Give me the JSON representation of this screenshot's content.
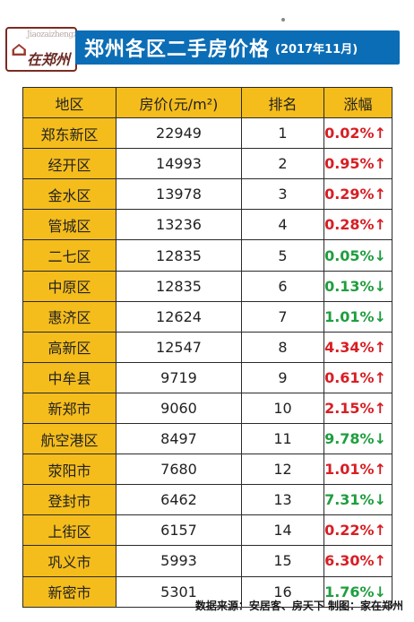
{
  "header": {
    "logo_text": "在郑州",
    "logo_sub": "Jiaozaizhengzhou",
    "title": "郑州各区二手房价格",
    "subtitle": "(2017年11月)"
  },
  "table": {
    "headers": [
      "地区",
      "房价(元/m²)",
      "排名",
      "涨幅"
    ],
    "rows": [
      {
        "district": "郑东新区",
        "price": "22949",
        "rank": "1",
        "change": "0.02%↑",
        "dir": "up"
      },
      {
        "district": "经开区",
        "price": "14993",
        "rank": "2",
        "change": "0.95%↑",
        "dir": "up"
      },
      {
        "district": "金水区",
        "price": "13978",
        "rank": "3",
        "change": "0.29%↑",
        "dir": "up"
      },
      {
        "district": "管城区",
        "price": "13236",
        "rank": "4",
        "change": "0.28%↑",
        "dir": "up"
      },
      {
        "district": "二七区",
        "price": "12835",
        "rank": "5",
        "change": "0.05%↓",
        "dir": "down"
      },
      {
        "district": "中原区",
        "price": "12835",
        "rank": "6",
        "change": "0.13%↓",
        "dir": "down"
      },
      {
        "district": "惠济区",
        "price": "12624",
        "rank": "7",
        "change": "1.01%↓",
        "dir": "down"
      },
      {
        "district": "高新区",
        "price": "12547",
        "rank": "8",
        "change": "4.34%↑",
        "dir": "up"
      },
      {
        "district": "中牟县",
        "price": "9719",
        "rank": "9",
        "change": "0.61%↑",
        "dir": "up"
      },
      {
        "district": "新郑市",
        "price": "9060",
        "rank": "10",
        "change": "2.15%↑",
        "dir": "up"
      },
      {
        "district": "航空港区",
        "price": "8497",
        "rank": "11",
        "change": "9.78%↓",
        "dir": "down"
      },
      {
        "district": "荥阳市",
        "price": "7680",
        "rank": "12",
        "change": "1.01%↑",
        "dir": "up"
      },
      {
        "district": "登封市",
        "price": "6462",
        "rank": "13",
        "change": "7.31%↓",
        "dir": "down"
      },
      {
        "district": "上街区",
        "price": "6157",
        "rank": "14",
        "change": "0.22%↑",
        "dir": "up"
      },
      {
        "district": "巩义市",
        "price": "5993",
        "rank": "15",
        "change": "6.30%↑",
        "dir": "up"
      },
      {
        "district": "新密市",
        "price": "5301",
        "rank": "16",
        "change": "1.76%↓",
        "dir": "down"
      }
    ]
  },
  "footer": {
    "text": "数据来源：安居客、房天下  制图：家在郑州"
  },
  "colors": {
    "title_bar": "#0b6db6",
    "district_column": "#f5bd1c",
    "up": "#d81e24",
    "down": "#1f9e3e"
  }
}
